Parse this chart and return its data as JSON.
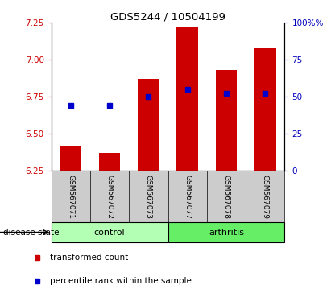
{
  "title": "GDS5244 / 10504199",
  "samples": [
    "GSM567071",
    "GSM567072",
    "GSM567073",
    "GSM567077",
    "GSM567078",
    "GSM567079"
  ],
  "red_values": [
    6.42,
    6.37,
    6.87,
    7.22,
    6.93,
    7.08
  ],
  "blue_values_left": [
    6.69,
    6.69,
    6.75,
    6.8,
    6.775,
    6.775
  ],
  "ymin": 6.25,
  "ymax": 7.25,
  "yticks_left": [
    6.25,
    6.5,
    6.75,
    7.0,
    7.25
  ],
  "yticks_right": [
    0,
    25,
    50,
    75,
    100
  ],
  "bar_color": "#cc0000",
  "dot_color": "#0000cc",
  "control_label": "control",
  "arthritis_label": "arthritis",
  "disease_label": "disease state",
  "legend_red": "transformed count",
  "legend_blue": "percentile rank within the sample",
  "control_color": "#b3ffb3",
  "arthritis_color": "#66ee66",
  "label_bg_color": "#cccccc",
  "tick_color_left": "#cc0000",
  "tick_color_right": "#0000bb"
}
